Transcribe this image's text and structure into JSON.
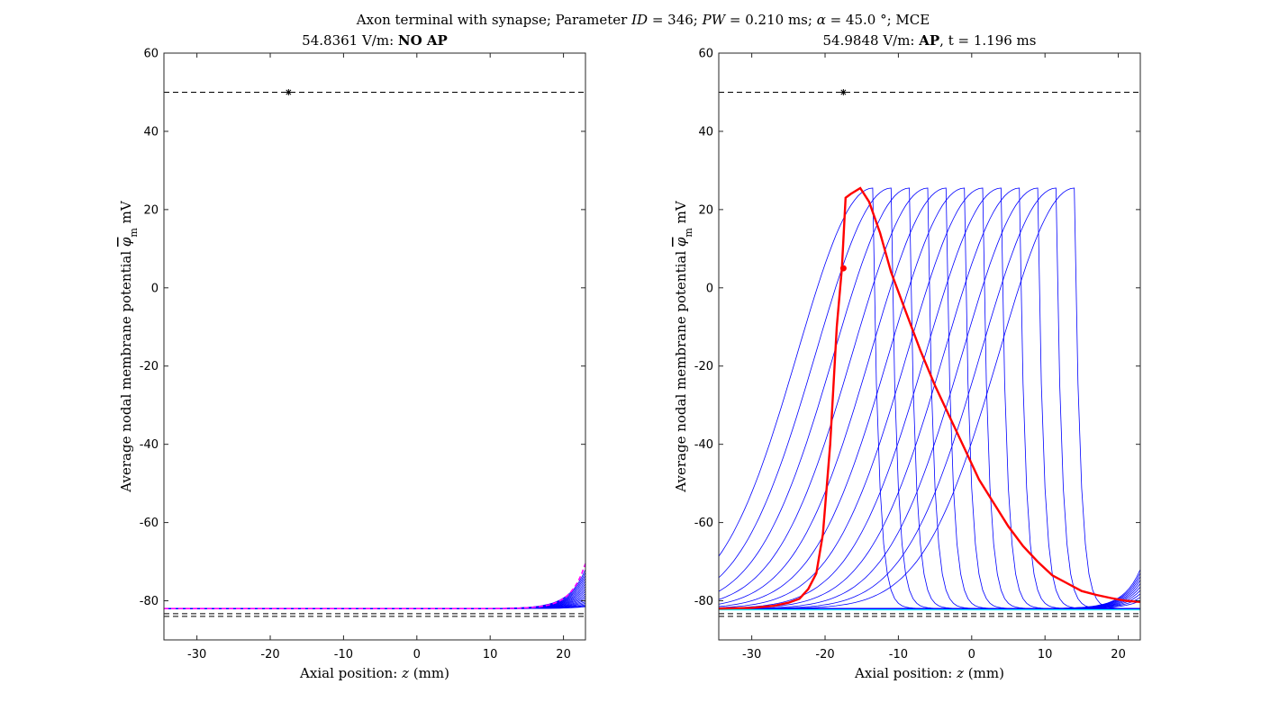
{
  "suptitle": {
    "prefix": "Axon terminal with synapse; Parameter ",
    "id_sym": "ID",
    "id_val": " = 346; ",
    "pw_sym": "PW",
    "pw_val": " = 0.210 ms; ",
    "alpha_sym": "α",
    "alpha_val": " = 45.0 °; MCE"
  },
  "colors": {
    "tested": "#0000ff",
    "response": "#ff0000",
    "highlight": "#ff00ff",
    "rest": "#00ffff",
    "ref": "#000000"
  },
  "chart_data": [
    {
      "type": "line",
      "title_field": "54.8361 V/m: ",
      "title_result": "NO AP",
      "title_time": "",
      "xlabel": "Axial position: ",
      "xlabel_var": "z",
      "xlabel_unit": " (mm)",
      "ylabel": "Average nodal membrane potential ",
      "ylabel_sym": "φ",
      "ylabel_sub": "m",
      "ylabel_unit": " mV",
      "xlim": [
        -34.5,
        23
      ],
      "ylim": [
        -90,
        60
      ],
      "xticks": [
        -30,
        -20,
        -10,
        0,
        10,
        20
      ],
      "xtick_labels": [
        "-30",
        "-20",
        "-10",
        "0",
        "10",
        "20"
      ],
      "yticks": [
        -80,
        -60,
        -40,
        -20,
        0,
        20,
        40,
        60
      ],
      "ytick_labels": [
        "-80",
        "-60",
        "-40",
        "-20",
        "0",
        "20",
        "40",
        "60"
      ],
      "threshold_line": 50,
      "rest_lines": [
        -83.3,
        -84.0
      ],
      "marker": {
        "x": -17.5,
        "y": 50
      },
      "rest_value": -82,
      "blue_series": {
        "count": 18,
        "tail_end_min": -81.5,
        "tail_end_max": -72,
        "decay": 2.3
      },
      "magenta_series": {
        "tail_end": -70.5,
        "decay": 2.0
      }
    },
    {
      "type": "line",
      "title_field": "54.9848 V/m: ",
      "title_result": "AP",
      "title_time": ", t = 1.196 ms",
      "xlabel": "Axial position: ",
      "xlabel_var": "z",
      "xlabel_unit": " (mm)",
      "ylabel": "Average nodal membrane potential ",
      "ylabel_sym": "φ",
      "ylabel_sub": "m",
      "ylabel_unit": " mV",
      "xlim": [
        -34.5,
        23
      ],
      "ylim": [
        -90,
        60
      ],
      "xticks": [
        -30,
        -20,
        -10,
        0,
        10,
        20
      ],
      "xtick_labels": [
        "-30",
        "-20",
        "-10",
        "0",
        "10",
        "20"
      ],
      "yticks": [
        -80,
        -60,
        -40,
        -20,
        0,
        20,
        40,
        60
      ],
      "ytick_labels": [
        "-80",
        "-60",
        "-40",
        "-20",
        "0",
        "20",
        "40",
        "60"
      ],
      "threshold_line": 50,
      "rest_lines": [
        -83.3,
        -84.0
      ],
      "marker": {
        "x": -17.5,
        "y": 50
      },
      "rest_value": -82,
      "response_point": {
        "x": -17.5,
        "y": 5
      },
      "response_curve": {
        "x": [
          -34.5,
          -30,
          -27,
          -25,
          -23.5,
          -22.3,
          -21.2,
          -20.3,
          -19.3,
          -18.4,
          -17.7,
          -17.2,
          -16.5,
          -15.2,
          -14,
          -12.5,
          -11,
          -9,
          -7,
          -5,
          -3,
          -1,
          1,
          3,
          5,
          7,
          9,
          11,
          13,
          15,
          17,
          19,
          21,
          23
        ],
        "y": [
          -82,
          -81.8,
          -81.3,
          -80.5,
          -79.5,
          -77,
          -73,
          -63,
          -40,
          -10,
          5,
          23,
          24,
          25.5,
          22,
          14,
          4,
          -6,
          -16,
          -25,
          -33,
          -41,
          -49,
          -55,
          -61,
          -66,
          -70,
          -73.5,
          -75.5,
          -77.5,
          -78.5,
          -79.3,
          -80,
          -80.3
        ]
      },
      "ap_waves": {
        "start": -13.5,
        "step": 2.5,
        "count": 12,
        "peak": 25.5,
        "ahead_decay": 0.8,
        "behind_width": 32,
        "undershoot": -82
      }
    }
  ]
}
